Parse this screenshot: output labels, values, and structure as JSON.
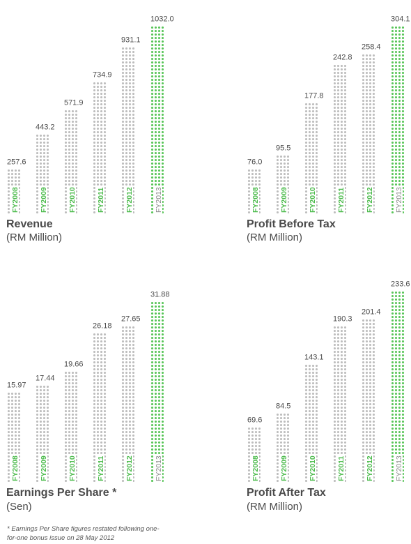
{
  "colors": {
    "dot_grey": "#bdbdbd",
    "dot_green": "#5ac65a",
    "label_green": "#4cbb4c",
    "label_grey": "#8a8a8a",
    "text": "#4a4a4a"
  },
  "footnote": "*  Earnings Per Share figures restated following one-for-one bonus issue on 28 May 2012",
  "chart_data": [
    {
      "type": "bar",
      "title": "Revenue",
      "unit": "(RM Million)",
      "categories": [
        "FY2008",
        "FY2009",
        "FY2010",
        "FY2011",
        "FY2012",
        "FY2013"
      ],
      "values": [
        257.6,
        443.2,
        571.9,
        734.9,
        931.1,
        1032.0
      ],
      "value_labels": [
        "257.6",
        "443.2",
        "571.9",
        "734.9",
        "931.1",
        "1032.0"
      ],
      "highlight": "FY2013"
    },
    {
      "type": "bar",
      "title": "Profit Before Tax",
      "unit": "(RM Million)",
      "categories": [
        "FY2008",
        "FY2009",
        "FY2010",
        "FY2011",
        "FY2012",
        "FY2013"
      ],
      "values": [
        76.0,
        95.5,
        177.8,
        242.8,
        258.4,
        304.1
      ],
      "value_labels": [
        "76.0",
        "95.5",
        "177.8",
        "242.8",
        "258.4",
        "304.1"
      ],
      "highlight": "FY2013"
    },
    {
      "type": "bar",
      "title": "Earnings Per Share *",
      "unit": "(Sen)",
      "categories": [
        "FY2008",
        "FY2009",
        "FY2010",
        "FY2011",
        "FY2012",
        "FY2013"
      ],
      "values": [
        15.97,
        17.44,
        19.66,
        26.18,
        27.65,
        31.88
      ],
      "value_labels": [
        "15.97",
        "17.44",
        "19.66",
        "26.18",
        "27.65",
        "31.88"
      ],
      "highlight": "FY2013"
    },
    {
      "type": "bar",
      "title": "Profit After Tax",
      "unit": "(RM Million)",
      "categories": [
        "FY2008",
        "FY2009",
        "FY2010",
        "FY2011",
        "FY2012",
        "FY2013"
      ],
      "values": [
        69.6,
        84.5,
        143.1,
        190.3,
        201.4,
        233.6
      ],
      "value_labels": [
        "69.6",
        "84.5",
        "143.1",
        "190.3",
        "201.4",
        "233.6"
      ],
      "highlight": "FY2013"
    }
  ]
}
